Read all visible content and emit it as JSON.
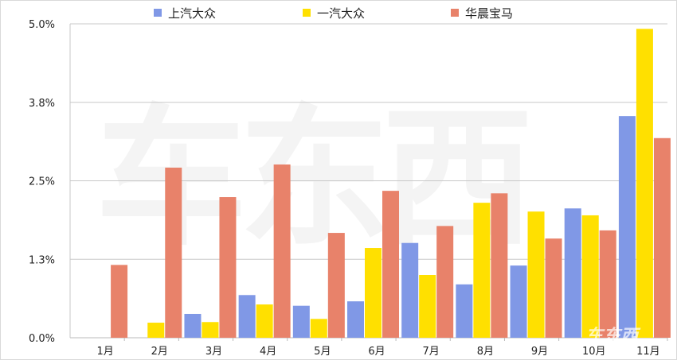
{
  "chart_data": {
    "type": "bar",
    "categories": [
      "1月",
      "2月",
      "3月",
      "4月",
      "5月",
      "6月",
      "7月",
      "8月",
      "9月",
      "10月",
      "11月"
    ],
    "series": [
      {
        "name": "上汽大众",
        "color": "#8098e6",
        "values": [
          0,
          0,
          0.38,
          0.68,
          0.51,
          0.58,
          1.51,
          0.85,
          1.15,
          2.06,
          3.53
        ]
      },
      {
        "name": "一汽大众",
        "color": "#ffe000",
        "values": [
          0,
          0.24,
          0.25,
          0.53,
          0.3,
          1.43,
          1.0,
          2.15,
          2.01,
          1.95,
          4.92
        ]
      },
      {
        "name": "华晨宝马",
        "color": "#e8826a",
        "values": [
          1.16,
          2.71,
          2.24,
          2.76,
          1.67,
          2.34,
          1.78,
          2.3,
          1.58,
          1.71,
          3.18
        ]
      }
    ],
    "yticks": [
      "0.0%",
      "1.3%",
      "2.5%",
      "3.8%",
      "5.0%"
    ],
    "ylim": [
      0,
      5.0
    ],
    "grid": true,
    "legend": "top"
  },
  "watermark": "车东西"
}
